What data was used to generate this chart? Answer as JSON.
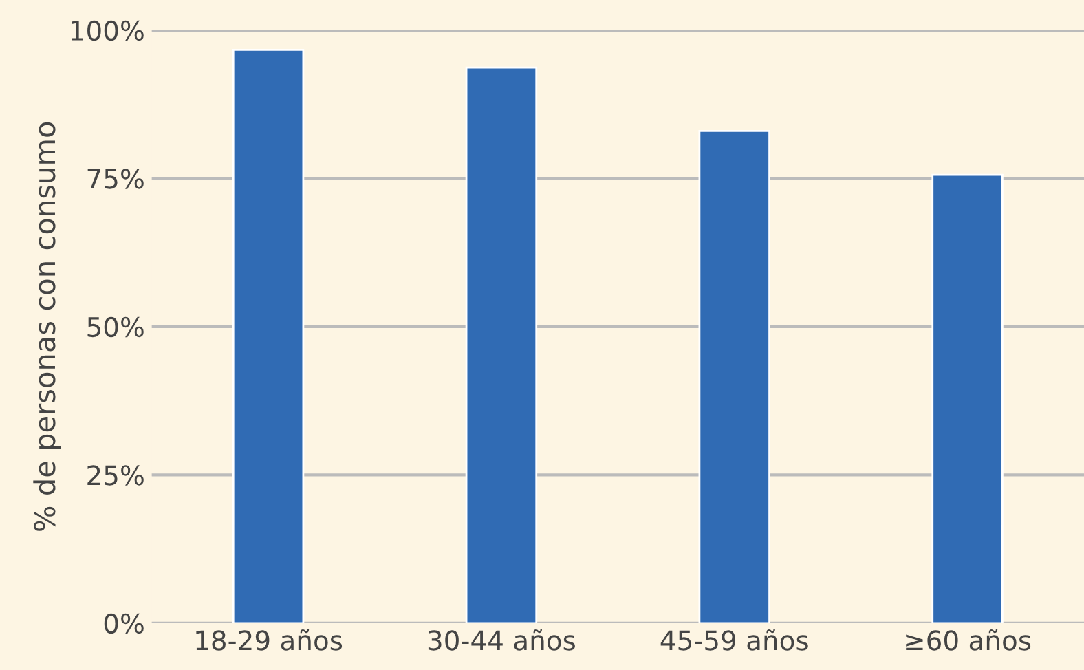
{
  "chart_data": {
    "type": "bar",
    "ylabel": "% de personas con consumo",
    "categories": [
      "18-29 años",
      "30-44 años",
      "45-59 años",
      "≥60 años"
    ],
    "values": [
      96.7,
      93.7,
      83.0,
      75.6
    ],
    "color": "#306bb4",
    "ylim": [
      0,
      100
    ],
    "yticks": [
      {
        "value": 0,
        "label": "0%"
      },
      {
        "value": 25,
        "label": "25%"
      },
      {
        "value": 50,
        "label": "50%"
      },
      {
        "value": 75,
        "label": "75%"
      },
      {
        "value": 100,
        "label": "100%"
      }
    ],
    "grid": "y",
    "legend": false
  }
}
